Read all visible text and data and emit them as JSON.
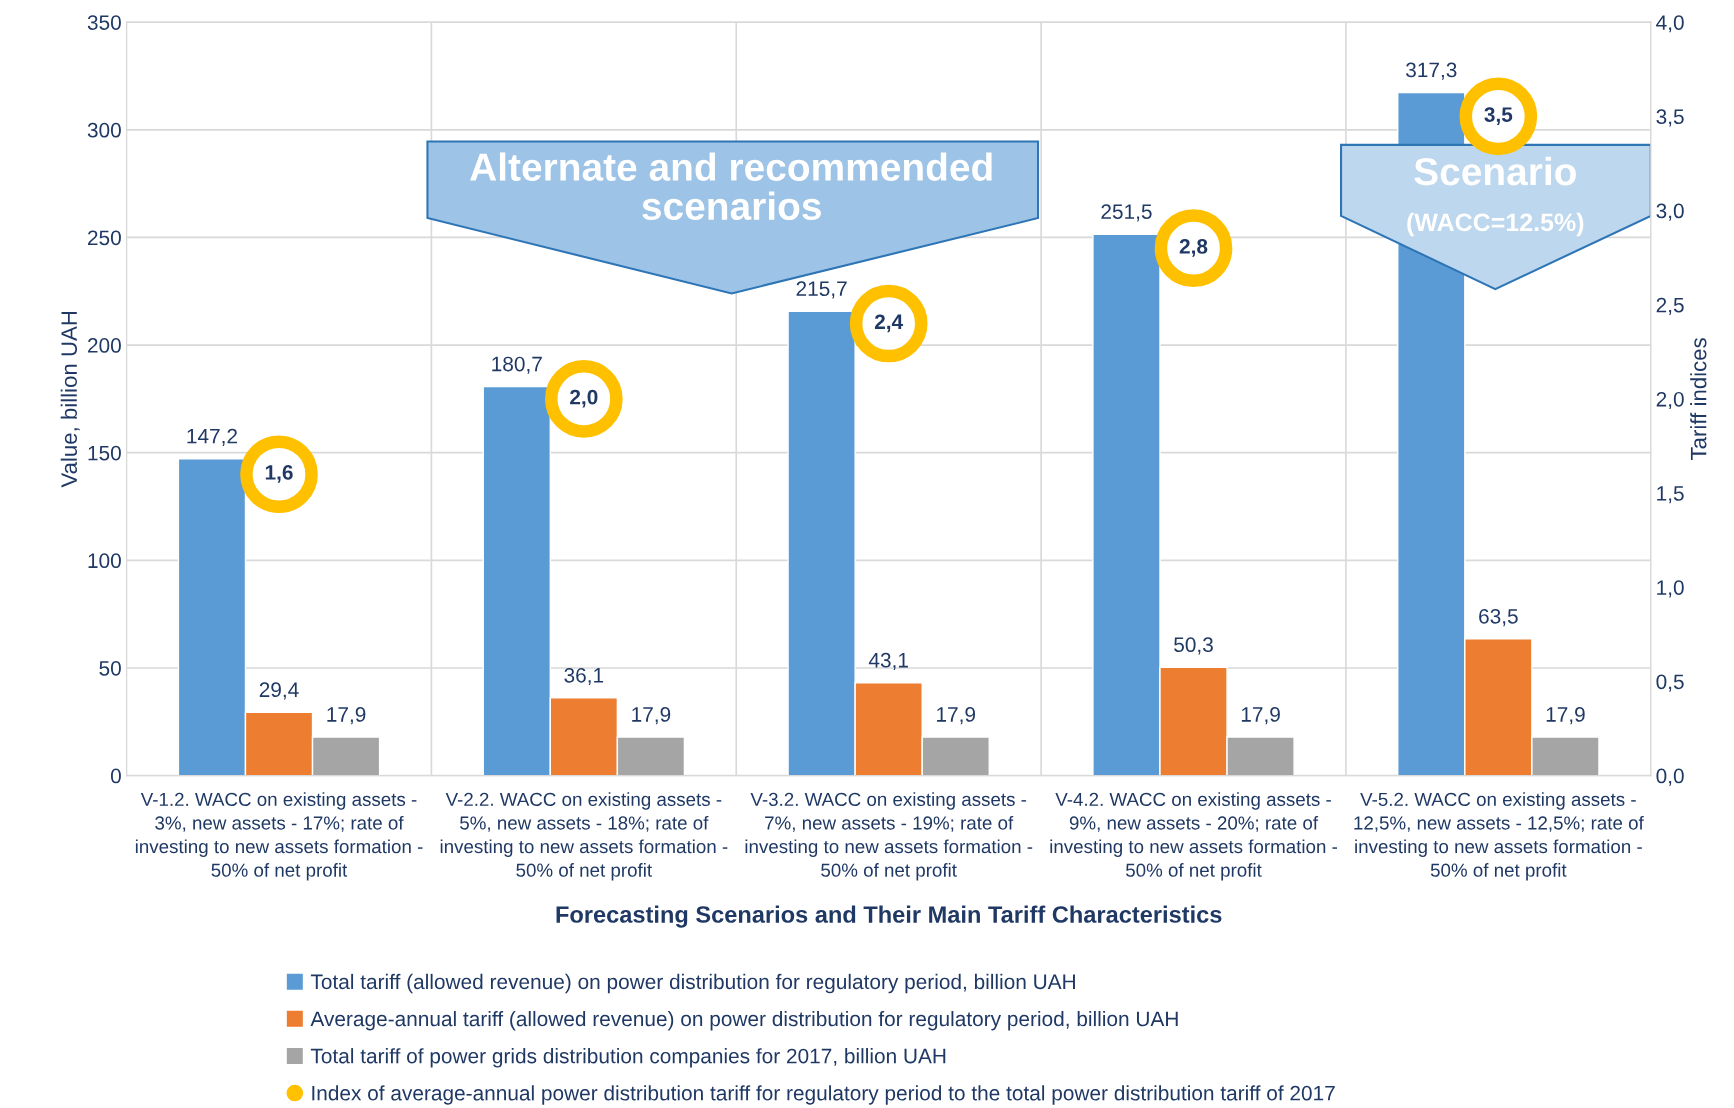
{
  "chart_data": {
    "type": "bar",
    "xlabel": "Forecasting Scenarios and Their Main Tariff Characteristics",
    "ylabel": "Value, billion UAH",
    "y2label": "Tariff indices",
    "categories": [
      "V-1.2. WACC on existing assets -\n3%, new assets - 17%; rate of\ninvesting to new assets formation -\n50% of net profit",
      "V-2.2. WACC on existing assets -\n5%, new assets - 18%; rate of\ninvesting to new assets formation -\n50% of net profit",
      "V-3.2. WACC on existing assets -\n7%, new assets - 19%; rate of\ninvesting to new assets formation -\n50% of net profit",
      "V-4.2. WACC on existing assets -\n9%, new assets - 20%; rate of\ninvesting to new assets formation -\n50% of net profit",
      "V-5.2. WACC on existing assets -\n12,5%, new assets - 12,5%; rate of\ninvesting to new assets formation -\n50% of net profit"
    ],
    "series": [
      {
        "name": "Total tariff (allowed revenue) on power distribution for regulatory period, billion UAH",
        "color": "#5b9bd5",
        "values": [
          147.2,
          180.7,
          215.7,
          251.5,
          317.3
        ],
        "value_labels": [
          "147,2",
          "180,7",
          "215,7",
          "251,5",
          "317,3"
        ]
      },
      {
        "name": "Average-annual tariff (allowed revenue) on power distribution for regulatory period, billion UAH",
        "color": "#ed7d31",
        "values": [
          29.4,
          36.1,
          43.1,
          50.3,
          63.5
        ],
        "value_labels": [
          "29,4",
          "36,1",
          "43,1",
          "50,3",
          "63,5"
        ]
      },
      {
        "name": "Total tariff of power grids distribution companies for 2017, billion UAH",
        "color": "#a5a5a5",
        "values": [
          17.9,
          17.9,
          17.9,
          17.9,
          17.9
        ],
        "value_labels": [
          "17,9",
          "17,9",
          "17,9",
          "17,9",
          "17,9"
        ]
      },
      {
        "name": "Index of average-annual power distribution tariff for regulatory period to the total power distribution tariff of 2017",
        "type": "scatter",
        "axis": "y2",
        "marker": "circle",
        "color": "#ffc000",
        "values": [
          1.6,
          2.0,
          2.4,
          2.8,
          3.5
        ],
        "value_labels": [
          "1,6",
          "2,0",
          "2,4",
          "2,8",
          "3,5"
        ]
      }
    ],
    "ylim": [
      0,
      350
    ],
    "yticks": [
      0,
      50,
      100,
      150,
      200,
      250,
      300,
      350
    ],
    "y2lim": [
      0,
      4
    ],
    "y2ticks": [
      {
        "value": 0,
        "label": "0,0"
      },
      {
        "value": 0.5,
        "label": "0,5"
      },
      {
        "value": 1,
        "label": "1,0"
      },
      {
        "value": 1.5,
        "label": "1,5"
      },
      {
        "value": 2,
        "label": "2,0"
      },
      {
        "value": 2.5,
        "label": "2,5"
      },
      {
        "value": 3,
        "label": "3,0"
      },
      {
        "value": 3.5,
        "label": "3,5"
      },
      {
        "value": 4,
        "label": "4,0"
      }
    ],
    "annotations": [
      "Alternate and recommended\nscenarios",
      "Scenario",
      "(WACC=12.5%)"
    ],
    "grid": true,
    "legend": "bottom"
  }
}
